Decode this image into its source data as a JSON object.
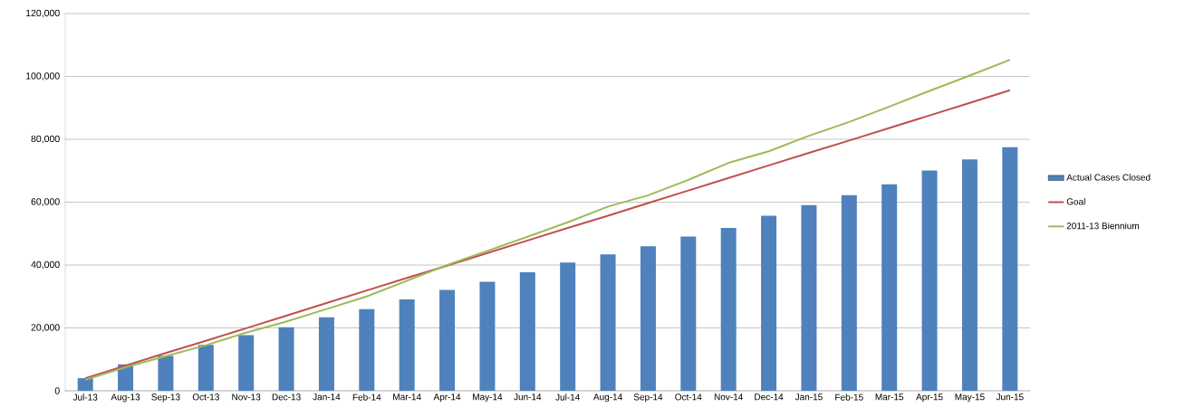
{
  "chart_data": {
    "type": "bar",
    "categories": [
      "Jul-13",
      "Aug-13",
      "Sep-13",
      "Oct-13",
      "Nov-13",
      "Dec-13",
      "Jan-14",
      "Feb-14",
      "Mar-14",
      "Apr-14",
      "May-14",
      "Jun-14",
      "Jul-14",
      "Aug-14",
      "Sep-14",
      "Oct-14",
      "Nov-14",
      "Dec-14",
      "Jan-15",
      "Feb-15",
      "Mar-15",
      "Apr-15",
      "May-15",
      "Jun-15"
    ],
    "series": [
      {
        "name": "Actual Cases Closed",
        "color": "#4f81bd",
        "values": [
          4000,
          8400,
          11100,
          14600,
          17700,
          20200,
          23400,
          26000,
          29100,
          32100,
          34700,
          37700,
          40800,
          43400,
          46000,
          49100,
          51800,
          55700,
          59100,
          62200,
          65700,
          70100,
          73600,
          77500
        ]
      },
      {
        "name": "Goal",
        "type": "line",
        "color": "#c0504d",
        "values": [
          4000,
          8000,
          12000,
          15900,
          19900,
          23900,
          27900,
          31900,
          35900,
          39800,
          43800,
          47800,
          51800,
          55700,
          59700,
          63700,
          67700,
          71700,
          75700,
          79600,
          83600,
          87600,
          91600,
          95600
        ]
      },
      {
        "name": "2011-13 Biennium",
        "type": "line",
        "color": "#9bbb59",
        "values": [
          3500,
          7500,
          11000,
          14500,
          18500,
          22000,
          26000,
          30000,
          35000,
          40000,
          44500,
          49000,
          53600,
          58600,
          62200,
          67100,
          72500,
          76200,
          81100,
          85500,
          90400,
          95400,
          100300,
          105300
        ]
      }
    ],
    "ylim": [
      0,
      120000
    ],
    "yticks": [
      {
        "value": 0,
        "label": "0"
      },
      {
        "value": 20000,
        "label": "20,000"
      },
      {
        "value": 40000,
        "label": "40,000"
      },
      {
        "value": 60000,
        "label": "60,000"
      },
      {
        "value": 80000,
        "label": "80,000"
      },
      {
        "value": 100000,
        "label": "100,000"
      },
      {
        "value": 120000,
        "label": "120,000"
      }
    ],
    "grid": "y",
    "legend": "right"
  }
}
